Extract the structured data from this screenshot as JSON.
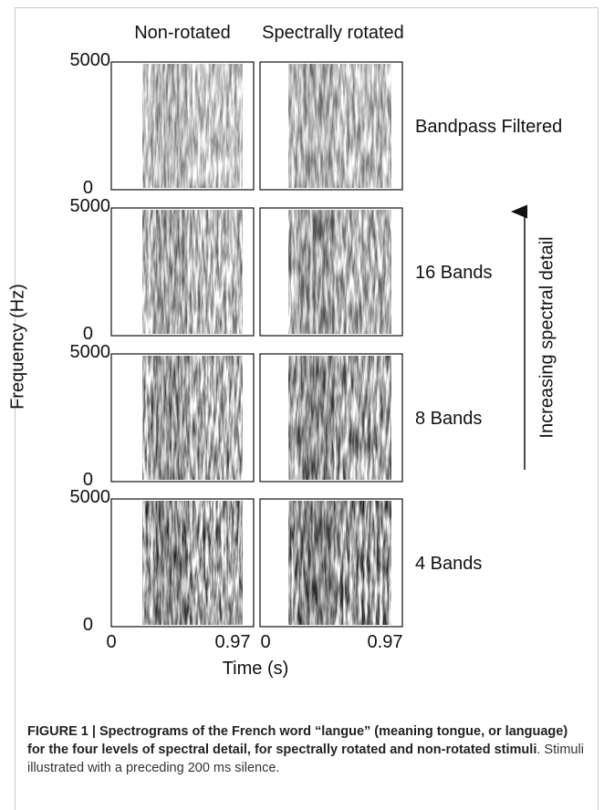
{
  "figure": {
    "column_titles": [
      "Non-rotated",
      "Spectrally rotated"
    ],
    "rows": [
      {
        "label": "Bandpass Filtered",
        "y_ticks": [
          "5000",
          "0"
        ]
      },
      {
        "label": "16 Bands",
        "y_ticks": [
          "5000",
          "0"
        ]
      },
      {
        "label": "8 Bands",
        "y_ticks": [
          "5000",
          "0"
        ]
      },
      {
        "label": "4 Bands",
        "y_ticks": [
          "5000",
          "0"
        ]
      }
    ],
    "y_axis_label": "Frequency (Hz)",
    "x_ticks": [
      "0",
      "0.97",
      "0",
      "0.97"
    ],
    "x_axis_label": "Time (s)",
    "arrow_label": "Increasing spectral detail"
  },
  "caption": {
    "label": "FIGURE 1 | Spectrograms of the French word “langue” (meaning tongue, or language) for the four levels of spectral detail, for spectrally rotated and non-rotated stimuli",
    "text": ". Stimuli illustrated with a preceding 200 ms silence."
  }
}
